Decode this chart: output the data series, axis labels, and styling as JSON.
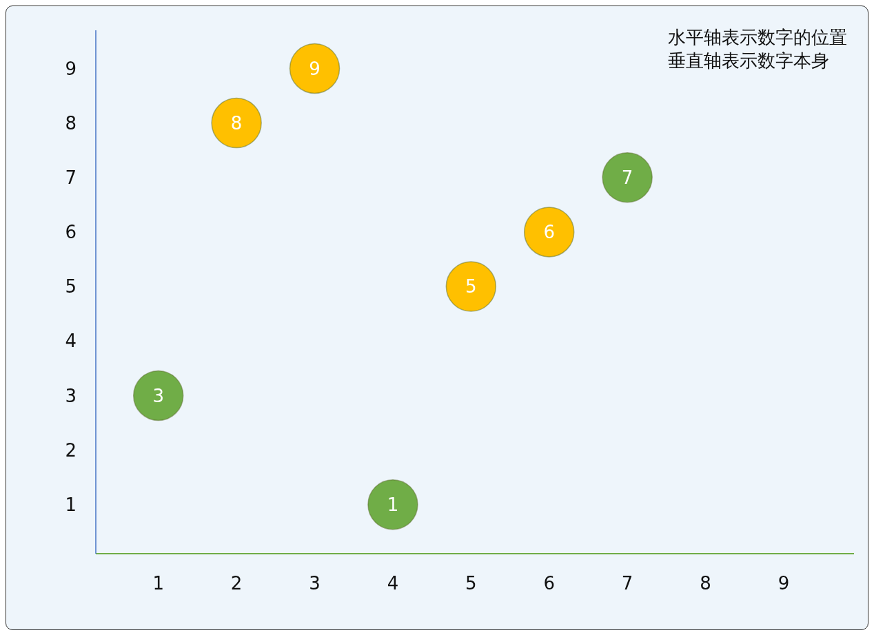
{
  "chart_data": {
    "type": "scatter",
    "x": [
      1,
      2,
      3,
      4,
      5,
      6,
      7
    ],
    "values": [
      3,
      8,
      9,
      1,
      5,
      6,
      7
    ],
    "colors": [
      "#70ad47",
      "#ffc000",
      "#ffc000",
      "#70ad47",
      "#ffc000",
      "#ffc000",
      "#70ad47"
    ],
    "xlim": [
      0.2,
      9.9
    ],
    "xticks": [
      1,
      2,
      3,
      4,
      5,
      6,
      7,
      8,
      9
    ],
    "ylim": [
      0.1,
      9.7
    ],
    "yticks": [
      1,
      2,
      3,
      4,
      5,
      6,
      7,
      8,
      9
    ],
    "data_labels": true,
    "marker": "circle",
    "annotations": [
      "水平轴表示数字的位置",
      "垂直轴表示数字本身"
    ]
  }
}
